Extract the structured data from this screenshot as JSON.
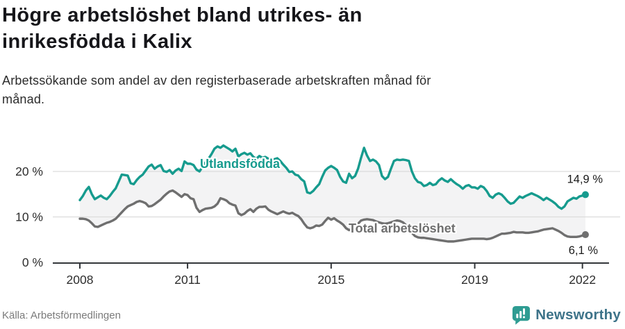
{
  "header": {
    "title": "Högre arbetslöshet bland utrikes- än inrikesfödda i Kalix",
    "title_lines": [
      "Högre arbetslöshet bland utrikes- än",
      "inrikesfödda i Kalix"
    ],
    "subtitle": "Arbetssökande som andel av den registerbaserade arbetskraften månad för månad.",
    "subtitle_lines": [
      "Arbetssökande som andel av den registerbaserade arbetskraften månad för",
      "månad."
    ]
  },
  "footer": {
    "source": "Källa: Arbetsförmedlingen",
    "brand_name": "Newsworthy",
    "brand_icon": "bar-chart-speech-bubble-icon"
  },
  "theme": {
    "background": "#ffffff",
    "title_color": "#16161a",
    "subtitle_color": "#2b2b2b",
    "axis_color": "#33363a",
    "gridline_color": "#dcdcdc",
    "band_fill": "#f3f3f4",
    "tick_label_color": "#2e2e2e",
    "value_label_color": "#1a1a1a",
    "source_color": "#7b7b7b",
    "brand_teal": "#2e9c92",
    "brand_text_color": "#3d7389"
  },
  "chart_data": {
    "type": "line",
    "title": "Arbetslöshet i Kalix, utlandsfödda vs totalt",
    "x_unit": "month",
    "x_range": {
      "start": "2008-01",
      "end": "2022-02"
    },
    "x_tick_years": [
      2008,
      2011,
      2015,
      2019,
      2022
    ],
    "x_tick_labels": [
      "2008",
      "2011",
      "2015",
      "2019",
      "2022"
    ],
    "y_tick_values": [
      0,
      10,
      20
    ],
    "y_tick_labels": [
      "0 %",
      "10 %",
      "20 %"
    ],
    "ylim": [
      0,
      27
    ],
    "unit": "%",
    "grid": "horizontal",
    "legend_position": "inline-labels-on-lines",
    "band_fill_between_series": true,
    "series": [
      {
        "name": "Utlandsfödda",
        "color": "#169b8e",
        "end_value": 14.9,
        "end_value_label": "14,9 %",
        "values": [
          13.7,
          14.6,
          15.8,
          16.6,
          15.0,
          13.9,
          14.3,
          14.7,
          14.2,
          13.9,
          14.6,
          15.5,
          16.3,
          17.8,
          19.3,
          19.2,
          19.1,
          17.4,
          17.2,
          18.1,
          18.8,
          19.3,
          20.2,
          21.1,
          21.5,
          20.6,
          21.1,
          21.4,
          20.1,
          19.9,
          20.3,
          19.5,
          20.2,
          20.6,
          20.1,
          22.2,
          21.7,
          21.7,
          21.4,
          20.4,
          20.0,
          21.0,
          22.0,
          22.8,
          23.8,
          25.0,
          25.5,
          25.2,
          25.7,
          25.3,
          24.9,
          24.4,
          25.0,
          23.3,
          23.8,
          24.1,
          23.7,
          24.0,
          23.2,
          22.8,
          23.4,
          23.0,
          23.2,
          22.8,
          22.5,
          22.7,
          22.9,
          22.3,
          21.5,
          20.8,
          19.9,
          20.0,
          19.3,
          19.1,
          18.3,
          17.8,
          15.4,
          15.2,
          15.7,
          16.5,
          17.2,
          18.8,
          20.2,
          20.8,
          21.2,
          20.8,
          20.3,
          18.8,
          17.8,
          17.5,
          19.5,
          18.5,
          19.0,
          20.6,
          23.0,
          25.2,
          23.5,
          22.3,
          22.6,
          22.2,
          21.4,
          19.0,
          18.3,
          18.8,
          20.6,
          22.3,
          22.6,
          22.5,
          22.6,
          22.5,
          22.3,
          20.0,
          18.5,
          17.7,
          17.5,
          16.8,
          17.0,
          17.5,
          17.0,
          17.2,
          18.0,
          18.5,
          18.0,
          17.7,
          18.3,
          17.7,
          17.2,
          16.8,
          16.2,
          16.8,
          17.0,
          16.5,
          16.5,
          16.2,
          16.8,
          16.5,
          15.7,
          14.6,
          14.2,
          14.9,
          15.2,
          14.9,
          14.2,
          13.4,
          12.9,
          13.1,
          13.8,
          14.5,
          14.2,
          14.6,
          14.9,
          15.2,
          14.9,
          14.6,
          14.2,
          13.7,
          14.2,
          13.8,
          13.4,
          12.9,
          12.2,
          11.8,
          12.3,
          13.4,
          13.8,
          14.2,
          14.0,
          14.5,
          14.7,
          14.9
        ]
      },
      {
        "name": "Total arbetslöshet",
        "color": "#6f6f6f",
        "end_value": 6.1,
        "end_value_label": "6,1 %",
        "values": [
          9.6,
          9.6,
          9.5,
          9.2,
          8.6,
          7.9,
          7.8,
          8.1,
          8.4,
          8.7,
          8.9,
          9.2,
          9.6,
          10.3,
          11.0,
          11.7,
          12.3,
          12.6,
          12.9,
          13.3,
          13.5,
          13.3,
          13.0,
          12.3,
          12.4,
          12.8,
          13.3,
          13.8,
          14.5,
          15.1,
          15.6,
          15.8,
          15.4,
          14.9,
          14.4,
          15.0,
          14.8,
          14.1,
          13.9,
          12.0,
          11.1,
          11.5,
          11.8,
          11.9,
          12.0,
          12.3,
          12.9,
          14.1,
          13.9,
          13.6,
          13.0,
          12.7,
          12.5,
          10.8,
          10.4,
          10.7,
          11.3,
          11.7,
          11.1,
          11.8,
          12.2,
          12.2,
          12.3,
          11.6,
          11.2,
          10.9,
          10.6,
          10.9,
          11.2,
          10.9,
          10.7,
          10.9,
          10.5,
          10.2,
          9.5,
          8.5,
          7.7,
          7.5,
          7.7,
          8.1,
          8.0,
          8.3,
          9.1,
          9.8,
          9.4,
          9.7,
          9.2,
          8.8,
          8.3,
          7.5,
          7.1,
          7.3,
          7.8,
          8.5,
          9.2,
          9.4,
          9.5,
          9.4,
          9.3,
          9.0,
          8.8,
          8.6,
          8.5,
          8.6,
          8.8,
          9.0,
          9.2,
          9.1,
          8.8,
          8.2,
          7.4,
          6.5,
          5.8,
          5.5,
          5.4,
          5.4,
          5.3,
          5.2,
          5.1,
          5.0,
          4.9,
          4.8,
          4.7,
          4.6,
          4.6,
          4.6,
          4.7,
          4.8,
          4.9,
          5.0,
          5.1,
          5.2,
          5.2,
          5.2,
          5.2,
          5.2,
          5.1,
          5.2,
          5.4,
          5.7,
          6.0,
          6.3,
          6.3,
          6.4,
          6.5,
          6.7,
          6.6,
          6.6,
          6.6,
          6.5,
          6.5,
          6.6,
          6.7,
          6.8,
          7.0,
          7.2,
          7.3,
          7.4,
          7.5,
          7.2,
          6.9,
          6.5,
          6.0,
          5.7,
          5.6,
          5.6,
          5.6,
          5.7,
          5.9,
          6.1
        ]
      }
    ]
  }
}
